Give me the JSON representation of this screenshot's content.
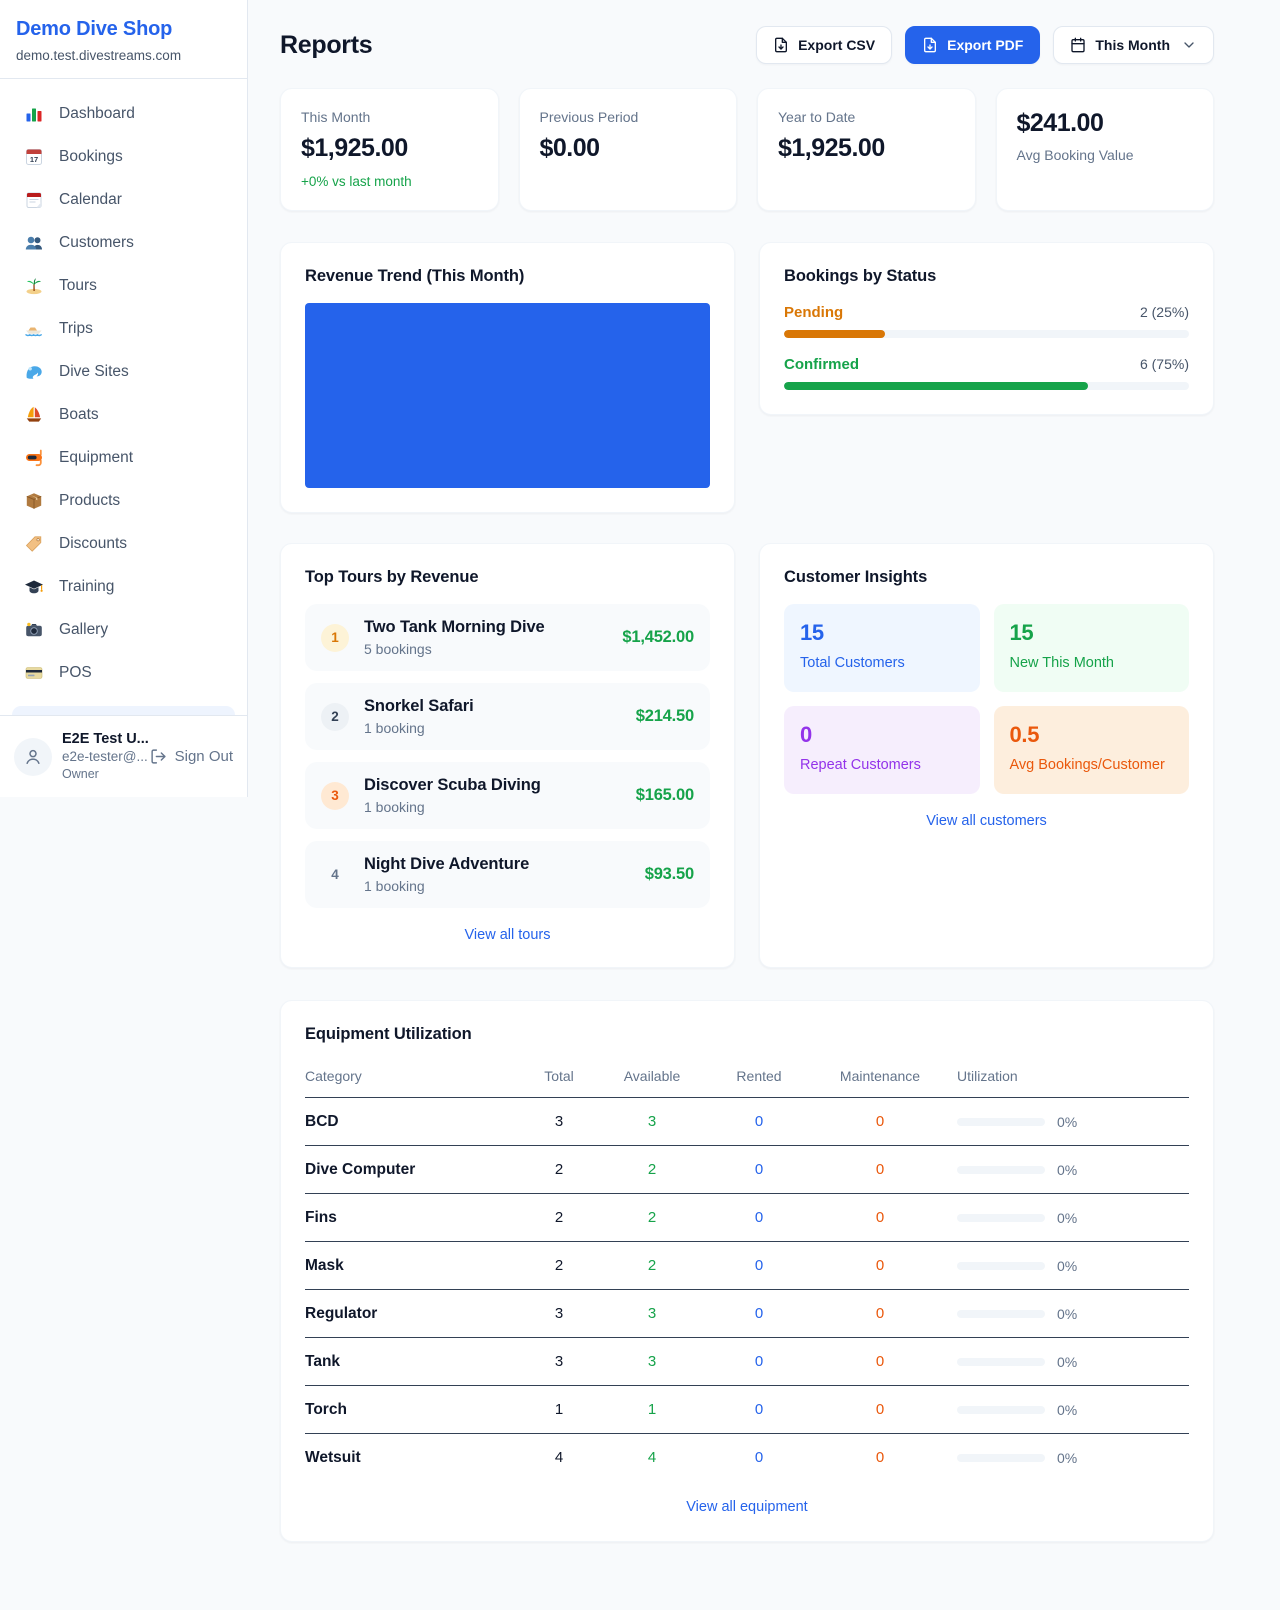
{
  "colors": {
    "primary": "#2563eb",
    "success": "#16a34a",
    "pending_orange": "#d97706",
    "maintenance_orange": "#ea580c",
    "purple": "#9333ea"
  },
  "sidebar": {
    "shop_name": "Demo Dive Shop",
    "shop_domain": "demo.test.divestreams.com",
    "nav": [
      {
        "label": "Dashboard",
        "icon": "bar-chart-icon"
      },
      {
        "label": "Bookings",
        "icon": "calendar-date-icon"
      },
      {
        "label": "Calendar",
        "icon": "calendar-pad-icon"
      },
      {
        "label": "Customers",
        "icon": "people-icon"
      },
      {
        "label": "Tours",
        "icon": "island-icon"
      },
      {
        "label": "Trips",
        "icon": "speedboat-icon"
      },
      {
        "label": "Dive Sites",
        "icon": "wave-icon"
      },
      {
        "label": "Boats",
        "icon": "sailboat-icon"
      },
      {
        "label": "Equipment",
        "icon": "dive-mask-icon"
      },
      {
        "label": "Products",
        "icon": "package-icon"
      },
      {
        "label": "Discounts",
        "icon": "tag-icon"
      },
      {
        "label": "Training",
        "icon": "grad-cap-icon"
      },
      {
        "label": "Gallery",
        "icon": "camera-icon"
      },
      {
        "label": "POS",
        "icon": "credit-card-icon"
      }
    ],
    "user": {
      "name": "E2E Test U...",
      "email": "e2e-tester@...",
      "role": "Owner",
      "sign_out_label": "Sign Out"
    }
  },
  "header": {
    "title": "Reports",
    "export_csv_label": "Export CSV",
    "export_pdf_label": "Export PDF",
    "period_label": "This Month"
  },
  "stats": [
    {
      "label": "This Month",
      "value": "$1,925.00",
      "delta": "+0% vs last month"
    },
    {
      "label": "Previous Period",
      "value": "$0.00"
    },
    {
      "label": "Year to Date",
      "value": "$1,925.00"
    },
    {
      "label": "Avg Booking Value",
      "value": "$241.00"
    }
  ],
  "revenue_trend": {
    "title": "Revenue Trend (This Month)",
    "bar_color": "#2563eb"
  },
  "bookings_by_status": {
    "title": "Bookings by Status",
    "items": [
      {
        "label": "Pending",
        "value_text": "2 (25%)",
        "count": 2,
        "percent": 25,
        "color": "#d97706"
      },
      {
        "label": "Confirmed",
        "value_text": "6 (75%)",
        "count": 6,
        "percent": 75,
        "color": "#16a34a"
      }
    ]
  },
  "top_tours": {
    "title": "Top Tours by Revenue",
    "items": [
      {
        "rank": "1",
        "name": "Two Tank Morning Dive",
        "bookings": "5 bookings",
        "revenue": "$1,452.00"
      },
      {
        "rank": "2",
        "name": "Snorkel Safari",
        "bookings": "1 booking",
        "revenue": "$214.50"
      },
      {
        "rank": "3",
        "name": "Discover Scuba Diving",
        "bookings": "1 booking",
        "revenue": "$165.00"
      },
      {
        "rank": "4",
        "name": "Night Dive Adventure",
        "bookings": "1 booking",
        "revenue": "$93.50"
      }
    ],
    "view_all_label": "View all tours"
  },
  "customer_insights": {
    "title": "Customer Insights",
    "tiles": [
      {
        "value": "15",
        "label": "Total Customers",
        "theme": "blue"
      },
      {
        "value": "15",
        "label": "New This Month",
        "theme": "green"
      },
      {
        "value": "0",
        "label": "Repeat Customers",
        "theme": "purple"
      },
      {
        "value": "0.5",
        "label": "Avg Bookings/Customer",
        "theme": "orange"
      }
    ],
    "view_all_label": "View all customers"
  },
  "equipment": {
    "title": "Equipment Utilization",
    "columns": [
      "Category",
      "Total",
      "Available",
      "Rented",
      "Maintenance",
      "Utilization"
    ],
    "rows": [
      {
        "category": "BCD",
        "total": "3",
        "available": "3",
        "rented": "0",
        "maintenance": "0",
        "utilization": "0%",
        "percent": 0
      },
      {
        "category": "Dive Computer",
        "total": "2",
        "available": "2",
        "rented": "0",
        "maintenance": "0",
        "utilization": "0%",
        "percent": 0
      },
      {
        "category": "Fins",
        "total": "2",
        "available": "2",
        "rented": "0",
        "maintenance": "0",
        "utilization": "0%",
        "percent": 0
      },
      {
        "category": "Mask",
        "total": "2",
        "available": "2",
        "rented": "0",
        "maintenance": "0",
        "utilization": "0%",
        "percent": 0
      },
      {
        "category": "Regulator",
        "total": "3",
        "available": "3",
        "rented": "0",
        "maintenance": "0",
        "utilization": "0%",
        "percent": 0
      },
      {
        "category": "Tank",
        "total": "3",
        "available": "3",
        "rented": "0",
        "maintenance": "0",
        "utilization": "0%",
        "percent": 0
      },
      {
        "category": "Torch",
        "total": "1",
        "available": "1",
        "rented": "0",
        "maintenance": "0",
        "utilization": "0%",
        "percent": 0
      },
      {
        "category": "Wetsuit",
        "total": "4",
        "available": "4",
        "rented": "0",
        "maintenance": "0",
        "utilization": "0%",
        "percent": 0
      }
    ],
    "view_all_label": "View all equipment"
  }
}
